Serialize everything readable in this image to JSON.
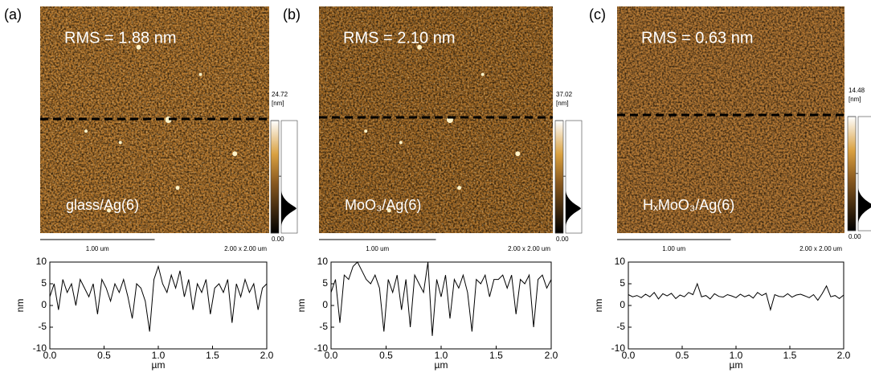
{
  "chart_data": [
    {
      "type": "line",
      "panel_label": "(a)",
      "rms_label": "RMS = 1.88 nm",
      "sample_label": "glass/Ag(6)",
      "scale_bar_label": "1.00 um",
      "image_size_label": "2.00 x 2.00 um",
      "colorbar": {
        "max": 24.72,
        "unit": "[nm]",
        "min": {
          "value": 0,
          "label": "0.00"
        }
      },
      "xlabel": "µm",
      "ylabel": "nm",
      "x": [
        0,
        0.04,
        0.08,
        0.12,
        0.16,
        0.2,
        0.24,
        0.28,
        0.32,
        0.36,
        0.4,
        0.44,
        0.48,
        0.52,
        0.56,
        0.6,
        0.64,
        0.68,
        0.72,
        0.76,
        0.8,
        0.84,
        0.88,
        0.92,
        0.96,
        1,
        1.04,
        1.08,
        1.12,
        1.16,
        1.2,
        1.24,
        1.28,
        1.32,
        1.36,
        1.4,
        1.44,
        1.48,
        1.52,
        1.56,
        1.6,
        1.64,
        1.68,
        1.72,
        1.76,
        1.8,
        1.84,
        1.88,
        1.92,
        1.96,
        2
      ],
      "values": [
        2,
        5,
        -1,
        6,
        3,
        5,
        0,
        6,
        4,
        2,
        5,
        -2,
        6,
        4,
        1,
        5,
        3,
        6,
        2,
        -3,
        5,
        4,
        1,
        -6,
        6,
        9,
        5,
        3,
        7,
        4,
        8,
        2,
        6,
        -1,
        5,
        3,
        6,
        -2,
        4,
        5,
        3,
        6,
        -4,
        5,
        2,
        6,
        3,
        5,
        -1,
        4,
        5
      ],
      "color": "#000000",
      "xlim": [
        0,
        2
      ],
      "xticks": [
        {
          "value": 0,
          "label": "0.0"
        },
        {
          "value": 0.5,
          "label": "0.5"
        },
        {
          "value": 1,
          "label": "1.0"
        },
        {
          "value": 1.5,
          "label": "1.5"
        },
        {
          "value": 2,
          "label": "2.0"
        }
      ],
      "ylim": [
        -10,
        10
      ],
      "yticks": [
        -10,
        -5,
        0,
        5,
        10
      ]
    },
    {
      "type": "line",
      "panel_label": "(b)",
      "rms_label": "RMS = 2.10 nm",
      "sample_label": "MoO₃/Ag(6)",
      "scale_bar_label": "1.00 um",
      "image_size_label": "2.00 x 2.00 um",
      "colorbar": {
        "max": 37.02,
        "unit": "[nm]",
        "min": {
          "value": 0,
          "label": "0.00"
        }
      },
      "xlabel": "µm",
      "ylabel": "nm",
      "x": [
        0,
        0.04,
        0.08,
        0.12,
        0.16,
        0.2,
        0.24,
        0.28,
        0.32,
        0.36,
        0.4,
        0.44,
        0.48,
        0.52,
        0.56,
        0.6,
        0.64,
        0.68,
        0.72,
        0.76,
        0.8,
        0.84,
        0.88,
        0.92,
        0.96,
        1,
        1.04,
        1.08,
        1.12,
        1.16,
        1.2,
        1.24,
        1.28,
        1.32,
        1.36,
        1.4,
        1.44,
        1.48,
        1.52,
        1.56,
        1.6,
        1.64,
        1.68,
        1.72,
        1.76,
        1.8,
        1.84,
        1.88,
        1.92,
        1.96,
        2
      ],
      "values": [
        3,
        6,
        -4,
        7,
        6,
        9,
        10,
        8,
        6,
        5,
        7,
        4,
        -6,
        6,
        3,
        7,
        -1,
        6,
        -5,
        7,
        5,
        3,
        10,
        -7,
        6,
        2,
        7,
        -3,
        6,
        4,
        7,
        3,
        -6,
        6,
        5,
        7,
        2,
        6,
        6,
        7,
        4,
        7,
        -2,
        6,
        5,
        7,
        -5,
        6,
        7,
        4,
        6
      ],
      "color": "#000000",
      "xlim": [
        0,
        2
      ],
      "xticks": [
        {
          "value": 0,
          "label": "0.0"
        },
        {
          "value": 0.5,
          "label": "0.5"
        },
        {
          "value": 1,
          "label": "1.0"
        },
        {
          "value": 1.5,
          "label": "1.5"
        },
        {
          "value": 2,
          "label": "2.0"
        }
      ],
      "ylim": [
        -10,
        10
      ],
      "yticks": [
        -10,
        -5,
        0,
        5,
        10
      ]
    },
    {
      "type": "line",
      "panel_label": "(c)",
      "rms_label": "RMS = 0.63 nm",
      "sample_label": "HₓMoO₃/Ag(6)",
      "scale_bar_label": "1.00 um",
      "image_size_label": "2.00 x 2.00 um",
      "colorbar": {
        "max": 14.48,
        "unit": "[nm]",
        "min": {
          "value": 0,
          "label": "0.00"
        }
      },
      "xlabel": "µm",
      "ylabel": "nm",
      "x": [
        0,
        0.04,
        0.08,
        0.12,
        0.16,
        0.2,
        0.24,
        0.28,
        0.32,
        0.36,
        0.4,
        0.44,
        0.48,
        0.52,
        0.56,
        0.6,
        0.64,
        0.68,
        0.72,
        0.76,
        0.8,
        0.84,
        0.88,
        0.92,
        0.96,
        1,
        1.04,
        1.08,
        1.12,
        1.16,
        1.2,
        1.24,
        1.28,
        1.32,
        1.36,
        1.4,
        1.44,
        1.48,
        1.52,
        1.56,
        1.6,
        1.64,
        1.68,
        1.72,
        1.76,
        1.8,
        1.84,
        1.88,
        1.92,
        1.96,
        2
      ],
      "values": [
        2.5,
        2,
        2.3,
        1.8,
        2.6,
        2,
        3,
        1.5,
        2.7,
        2.2,
        2.8,
        1.6,
        2.4,
        2,
        3,
        2.5,
        5,
        2,
        2.3,
        1.5,
        2.7,
        2.1,
        1.9,
        2.5,
        2.2,
        1.8,
        2.6,
        2,
        2.4,
        1.7,
        3,
        2.3,
        2.8,
        -1,
        2.5,
        2.1,
        2,
        2.7,
        1.9,
        2.4,
        2.6,
        2.2,
        1.8,
        2.5,
        1.2,
        2.7,
        4.5,
        2,
        2.3,
        1.6,
        2.4
      ],
      "color": "#000000",
      "xlim": [
        0,
        2
      ],
      "xticks": [
        {
          "value": 0,
          "label": "0.0"
        },
        {
          "value": 0.5,
          "label": "0.5"
        },
        {
          "value": 1,
          "label": "1.0"
        },
        {
          "value": 1.5,
          "label": "1.5"
        },
        {
          "value": 2,
          "label": "2.0"
        }
      ],
      "ylim": [
        -10,
        10
      ],
      "yticks": [
        -10,
        -5,
        0,
        5,
        10
      ]
    }
  ]
}
